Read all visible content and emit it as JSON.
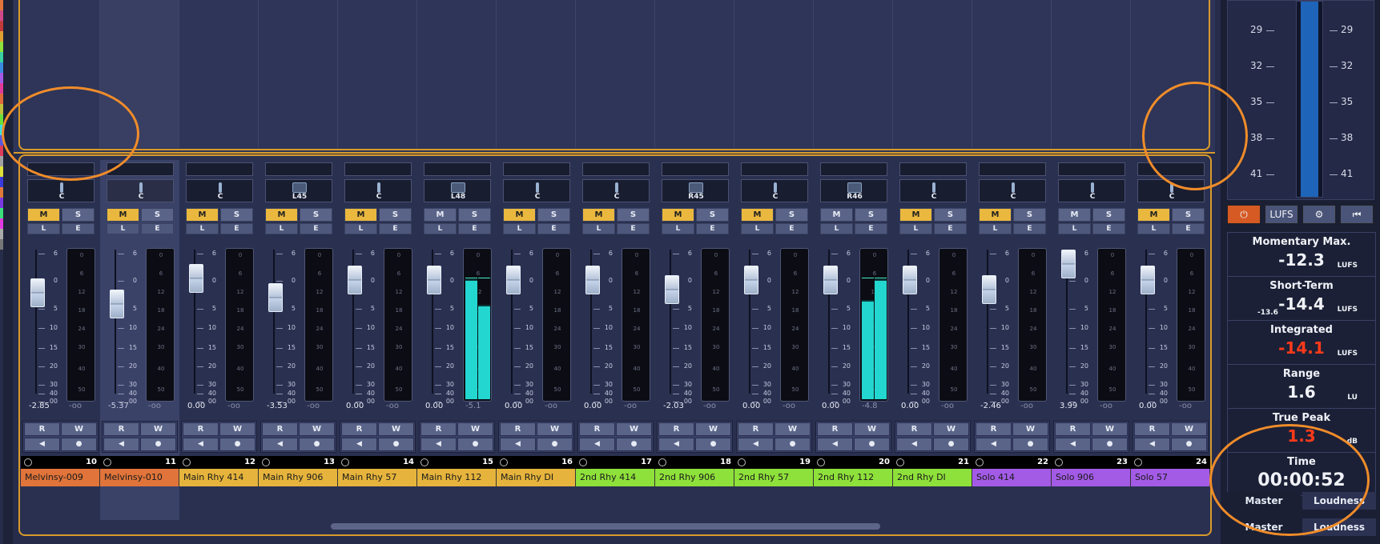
{
  "colors": {
    "accent_orange": "#d99a2b",
    "annotation_orange": "#f08c2a",
    "mute_active": "#eab83e",
    "meter_cyan": "#23d6d0",
    "loudness_red": "#ff3a1a"
  },
  "fader_scale": [
    "6",
    "0",
    "5",
    "10",
    "15",
    "20",
    "30",
    "40",
    "00"
  ],
  "meter_scale": [
    "0",
    "6",
    "12",
    "18",
    "24",
    "30",
    "40",
    "50"
  ],
  "button_labels": {
    "mute": "M",
    "solo": "S",
    "listen": "L",
    "edit": "E",
    "read": "R",
    "write": "W"
  },
  "channels": [
    {
      "number": "10",
      "name": "Melvinsy-009",
      "color": "#e0743a",
      "pan": "C",
      "mute": true,
      "volume": "-2.85",
      "peak": "-oo"
    },
    {
      "number": "11",
      "name": "Melvinsy-010",
      "color": "#e0743a",
      "pan": "C",
      "mute": true,
      "volume": "-5.37",
      "peak": "-oo",
      "selected": true
    },
    {
      "number": "12",
      "name": "Main Rhy 414",
      "color": "#e6b43c",
      "pan": "C",
      "mute": true,
      "volume": "0.00",
      "peak": "-oo"
    },
    {
      "number": "13",
      "name": "Main Rhy 906",
      "color": "#e6b43c",
      "pan": "L45",
      "mute": true,
      "volume": "-3.53",
      "peak": "-oo"
    },
    {
      "number": "14",
      "name": "Main Rhy 57",
      "color": "#e6b43c",
      "pan": "C",
      "mute": true,
      "volume": "0.00",
      "peak": "-oo"
    },
    {
      "number": "15",
      "name": "Main Rhy 112",
      "color": "#e6b43c",
      "pan": "L48",
      "mute": false,
      "volume": "0.00",
      "peak": "-5.1"
    },
    {
      "number": "16",
      "name": "Main Rhy DI",
      "color": "#e6b43c",
      "pan": "C",
      "mute": true,
      "volume": "0.00",
      "peak": "-oo"
    },
    {
      "number": "17",
      "name": "2nd Rhy 414",
      "color": "#8ee03a",
      "pan": "C",
      "mute": true,
      "volume": "0.00",
      "peak": "-oo"
    },
    {
      "number": "18",
      "name": "2nd Rhy 906",
      "color": "#8ee03a",
      "pan": "R45",
      "mute": true,
      "volume": "-2.03",
      "peak": "-oo"
    },
    {
      "number": "19",
      "name": "2nd Rhy 57",
      "color": "#8ee03a",
      "pan": "C",
      "mute": true,
      "volume": "0.00",
      "peak": "-oo"
    },
    {
      "number": "20",
      "name": "2nd Rhy 112",
      "color": "#8ee03a",
      "pan": "R46",
      "mute": false,
      "volume": "0.00",
      "peak": "-4.8"
    },
    {
      "number": "21",
      "name": "2nd Rhy DI",
      "color": "#8ee03a",
      "pan": "C",
      "mute": true,
      "volume": "0.00",
      "peak": "-oo"
    },
    {
      "number": "22",
      "name": "Solo 414",
      "color": "#a35be6",
      "pan": "C",
      "mute": true,
      "volume": "-2.46",
      "peak": "-oo"
    },
    {
      "number": "23",
      "name": "Solo 906",
      "color": "#a35be6",
      "pan": "C",
      "mute": false,
      "volume": "3.99",
      "peak": "-oo"
    },
    {
      "number": "24",
      "name": "Solo 57",
      "color": "#a35be6",
      "pan": "C",
      "mute": true,
      "volume": "0.00",
      "peak": "-oo"
    }
  ],
  "loudness_scale": [
    "29",
    "32",
    "35",
    "38",
    "41"
  ],
  "loudness_tools": [
    "power-icon",
    "LUFS",
    "gear-icon",
    "rewind-icon"
  ],
  "loudness_tool_lufs": "LUFS",
  "loudness": {
    "momentary_max": {
      "label": "Momentary Max.",
      "value": "-12.3",
      "unit": "LUFS"
    },
    "short_term": {
      "label": "Short-Term",
      "value": "-14.4",
      "sub": "-13.6",
      "unit": "LUFS"
    },
    "integrated": {
      "label": "Integrated",
      "value": "-14.1",
      "unit": "LUFS"
    },
    "range": {
      "label": "Range",
      "value": "1.6",
      "unit": "LU"
    },
    "true_peak": {
      "label": "True Peak",
      "value": "1.3",
      "unit": "dB"
    },
    "time": {
      "label": "Time",
      "value": "00:00:52"
    }
  },
  "tabs_inner": {
    "master": "Master",
    "loudness": "Loudness"
  },
  "tabs_outer": {
    "master": "Master",
    "loudness": "Loudness"
  }
}
